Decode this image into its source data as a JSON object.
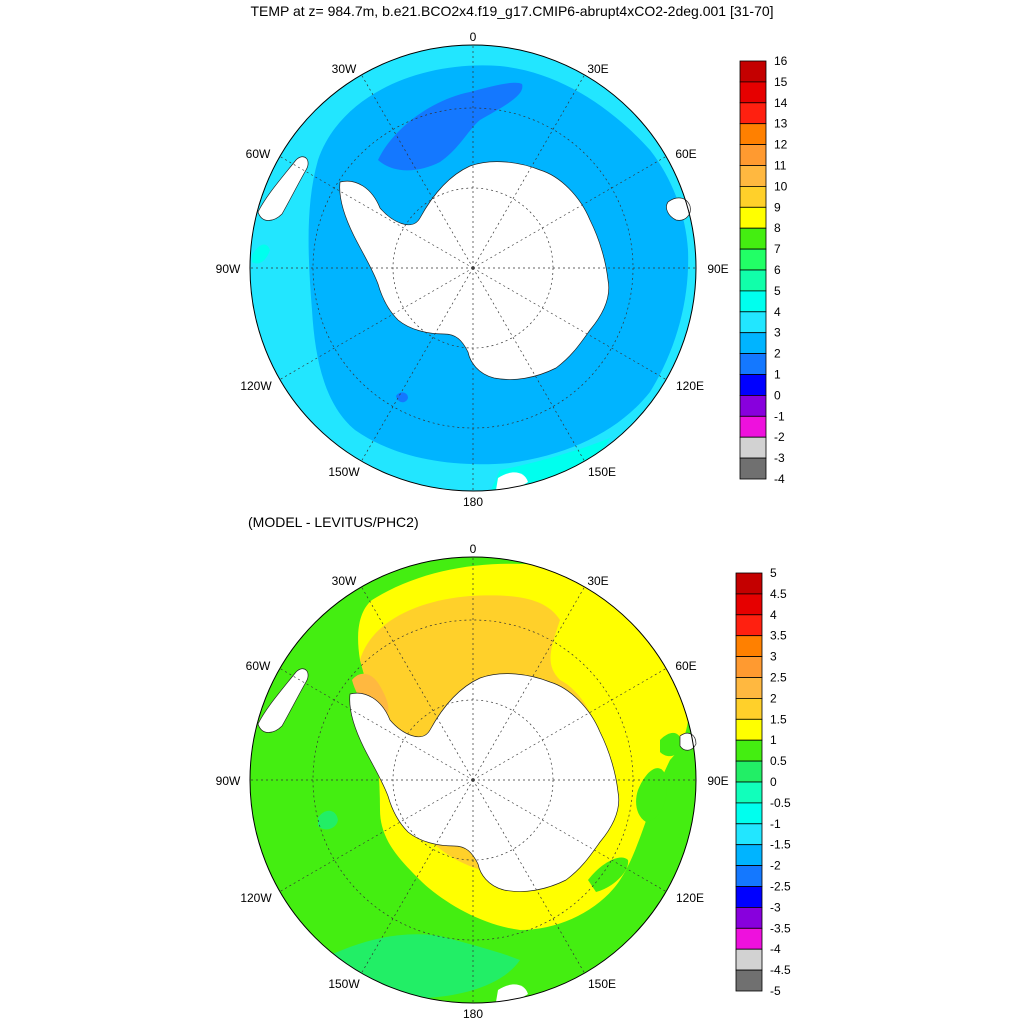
{
  "title": "TEMP at z= 984.7m, b.e21.BCO2x4.f19_g17.CMIP6-abrupt4xCO2-2deg.001 [31-70]",
  "subtitle": "(MODEL - LEVITUS/PHC2)",
  "longitude_labels": {
    "lon0": "0",
    "lon30e": "30E",
    "lon60e": "60E",
    "lon90e": "90E",
    "lon120e": "120E",
    "lon150e": "150E",
    "lon180": "180",
    "lon150w": "150W",
    "lon120w": "120W",
    "lon90w": "90W",
    "lon60w": "60W",
    "lon30w": "30W"
  },
  "top_colorbar": {
    "labels": [
      "16",
      "15",
      "14",
      "13",
      "12",
      "11",
      "10",
      "9",
      "8",
      "7",
      "6",
      "5",
      "4",
      "3",
      "2",
      "1",
      "0",
      "-1",
      "-2",
      "-3",
      "-4"
    ],
    "colors": [
      "#c40000",
      "#e60000",
      "#ff2010",
      "#ff8000",
      "#ff9a30",
      "#ffb840",
      "#ffd02a",
      "#ffff00",
      "#44ee11",
      "#22ff66",
      "#11ffaa",
      "#00ffee",
      "#22e6ff",
      "#00b4ff",
      "#1478ff",
      "#0000ff",
      "#8800dd",
      "#ee11dd",
      "#d2d2d2",
      "#707070"
    ]
  },
  "bottom_colorbar": {
    "labels": [
      "5",
      "4.5",
      "4",
      "3.5",
      "3",
      "2.5",
      "2",
      "1.5",
      "1",
      "0.5",
      "0",
      "-0.5",
      "-1",
      "-1.5",
      "-2",
      "-2.5",
      "-3",
      "-3.5",
      "-4",
      "-4.5",
      "-5"
    ],
    "colors": [
      "#c40000",
      "#e60000",
      "#ff2010",
      "#ff8000",
      "#ff9a30",
      "#ffb840",
      "#ffd02a",
      "#ffff00",
      "#44ee11",
      "#22ee66",
      "#11ffbb",
      "#00ffee",
      "#22e6ff",
      "#00b4ff",
      "#1478ff",
      "#0000ff",
      "#8800dd",
      "#ee11dd",
      "#d2d2d2",
      "#707070"
    ]
  },
  "colors": {
    "land": "#ffffff",
    "top_outer": "#22e6ff",
    "top_mid": "#00b4ff",
    "top_deep": "#1478ff",
    "top_cyan": "#00ffee",
    "bot_yellow": "#ffff00",
    "bot_orange": "#ffd02a",
    "bot_dorange": "#ffb840",
    "bot_green": "#44ee11",
    "bot_lgreen": "#22ee66"
  }
}
